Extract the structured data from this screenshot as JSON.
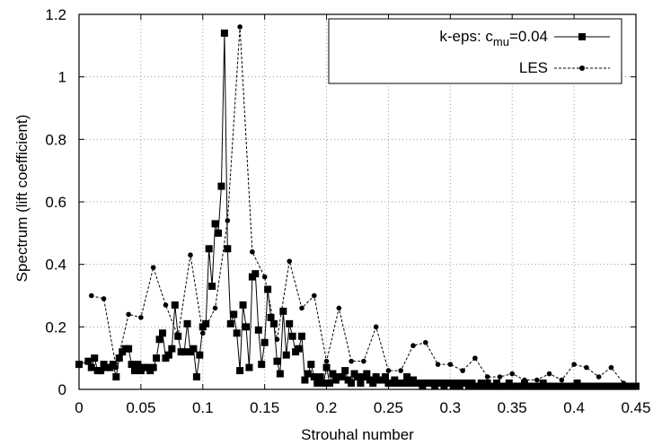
{
  "chart_data": {
    "type": "line",
    "xlabel": "Strouhal number",
    "ylabel": "Spectrum (lift coefficient)",
    "xlim": [
      0,
      0.45
    ],
    "ylim": [
      0,
      1.2
    ],
    "grid": true,
    "legend_position": "top-right",
    "x_ticks": [
      "0",
      "0.05",
      "0.1",
      "0.15",
      "0.2",
      "0.25",
      "0.3",
      "0.35",
      "0.4",
      "0.45"
    ],
    "y_ticks": [
      "0",
      "0.2",
      "0.4",
      "0.6",
      "0.8",
      "1",
      "1.2"
    ],
    "series": [
      {
        "name": "k-eps: c_mu=0.04",
        "legend_label_main": "k-eps: c",
        "legend_label_sub": "mu",
        "legend_label_tail": "=0.04",
        "color": "#000000",
        "marker": "square",
        "line_style": "solid",
        "x": [
          0.0,
          0.0075,
          0.01,
          0.0125,
          0.015,
          0.0175,
          0.02,
          0.0225,
          0.025,
          0.0275,
          0.03,
          0.0325,
          0.035,
          0.0375,
          0.04,
          0.0425,
          0.045,
          0.0475,
          0.05,
          0.0525,
          0.055,
          0.0575,
          0.06,
          0.0625,
          0.065,
          0.0675,
          0.07,
          0.0725,
          0.075,
          0.0775,
          0.08,
          0.0825,
          0.085,
          0.0875,
          0.09,
          0.0925,
          0.095,
          0.0975,
          0.1,
          0.1025,
          0.105,
          0.1075,
          0.11,
          0.1125,
          0.115,
          0.1175,
          0.12,
          0.1225,
          0.125,
          0.1275,
          0.13,
          0.1325,
          0.135,
          0.1375,
          0.14,
          0.1425,
          0.145,
          0.1475,
          0.15,
          0.1525,
          0.155,
          0.1575,
          0.16,
          0.1625,
          0.165,
          0.1675,
          0.17,
          0.1725,
          0.175,
          0.1775,
          0.18,
          0.1825,
          0.185,
          0.1875,
          0.19,
          0.1925,
          0.195,
          0.1975,
          0.2,
          0.2025,
          0.205,
          0.2075,
          0.21,
          0.2125,
          0.215,
          0.2175,
          0.22,
          0.2225,
          0.225,
          0.2275,
          0.23,
          0.2325,
          0.235,
          0.2375,
          0.24,
          0.2425,
          0.245,
          0.2475,
          0.25,
          0.2525,
          0.255,
          0.2575,
          0.26,
          0.2625,
          0.265,
          0.2675,
          0.27,
          0.2725,
          0.275,
          0.2775,
          0.28,
          0.2825,
          0.285,
          0.2875,
          0.29,
          0.2925,
          0.295,
          0.2975,
          0.3,
          0.3025,
          0.305,
          0.3075,
          0.31,
          0.3125,
          0.315,
          0.3175,
          0.32,
          0.3225,
          0.325,
          0.3275,
          0.33,
          0.3325,
          0.335,
          0.3375,
          0.34,
          0.3425,
          0.345,
          0.3475,
          0.35,
          0.3525,
          0.355,
          0.3575,
          0.36,
          0.3625,
          0.365,
          0.3675,
          0.37,
          0.3725,
          0.375,
          0.3775,
          0.38,
          0.3825,
          0.385,
          0.3875,
          0.39,
          0.3925,
          0.395,
          0.3975,
          0.4,
          0.4025,
          0.405,
          0.4075,
          0.41,
          0.4125,
          0.415,
          0.4175,
          0.42,
          0.4225,
          0.425,
          0.4275,
          0.43,
          0.4325,
          0.435,
          0.4375,
          0.44,
          0.4425,
          0.445,
          0.4475,
          0.45
        ],
        "y": [
          0.08,
          0.09,
          0.07,
          0.1,
          0.06,
          0.06,
          0.08,
          0.07,
          0.07,
          0.08,
          0.04,
          0.1,
          0.12,
          0.13,
          0.13,
          0.08,
          0.06,
          0.08,
          0.06,
          0.07,
          0.07,
          0.06,
          0.07,
          0.1,
          0.16,
          0.18,
          0.1,
          0.11,
          0.13,
          0.27,
          0.17,
          0.12,
          0.12,
          0.21,
          0.12,
          0.13,
          0.04,
          0.11,
          0.2,
          0.21,
          0.45,
          0.33,
          0.53,
          0.5,
          0.65,
          1.14,
          0.45,
          0.21,
          0.24,
          0.18,
          0.06,
          0.27,
          0.2,
          0.07,
          0.36,
          0.37,
          0.19,
          0.08,
          0.15,
          0.32,
          0.23,
          0.21,
          0.09,
          0.05,
          0.25,
          0.11,
          0.21,
          0.17,
          0.12,
          0.13,
          0.17,
          0.03,
          0.05,
          0.08,
          0.04,
          0.02,
          0.04,
          0.02,
          0.07,
          0.02,
          0.05,
          0.03,
          0.04,
          0.04,
          0.06,
          0.03,
          0.02,
          0.05,
          0.04,
          0.02,
          0.04,
          0.05,
          0.03,
          0.02,
          0.04,
          0.03,
          0.03,
          0.04,
          0.02,
          0.02,
          0.03,
          0.02,
          0.02,
          0.02,
          0.04,
          0.02,
          0.03,
          0.02,
          0.02,
          0.01,
          0.02,
          0.02,
          0.02,
          0.01,
          0.02,
          0.02,
          0.01,
          0.02,
          0.02,
          0.01,
          0.02,
          0.01,
          0.02,
          0.02,
          0.01,
          0.02,
          0.01,
          0.01,
          0.02,
          0.01,
          0.02,
          0.01,
          0.01,
          0.02,
          0.01,
          0.01,
          0.01,
          0.02,
          0.01,
          0.01,
          0.01,
          0.01,
          0.02,
          0.01,
          0.01,
          0.01,
          0.01,
          0.01,
          0.02,
          0.01,
          0.01,
          0.01,
          0.01,
          0.01,
          0.01,
          0.01,
          0.01,
          0.01,
          0.01,
          0.02,
          0.01,
          0.01,
          0.01,
          0.01,
          0.01,
          0.01,
          0.01,
          0.01,
          0.01,
          0.01,
          0.01,
          0.01,
          0.01,
          0.01,
          0.01,
          0.01,
          0.01,
          0.01,
          0.01
        ]
      },
      {
        "name": "LES",
        "color": "#000000",
        "marker": "circle",
        "line_style": "dashed",
        "x": [
          0.01,
          0.02,
          0.03,
          0.04,
          0.05,
          0.06,
          0.07,
          0.08,
          0.09,
          0.1,
          0.11,
          0.12,
          0.13,
          0.14,
          0.15,
          0.16,
          0.17,
          0.18,
          0.19,
          0.2,
          0.21,
          0.22,
          0.23,
          0.24,
          0.25,
          0.26,
          0.27,
          0.28,
          0.29,
          0.3,
          0.31,
          0.32,
          0.33,
          0.34,
          0.35,
          0.36,
          0.37,
          0.38,
          0.39,
          0.4,
          0.41,
          0.42,
          0.43,
          0.44,
          0.45
        ],
        "y": [
          0.3,
          0.29,
          0.07,
          0.24,
          0.23,
          0.39,
          0.27,
          0.17,
          0.43,
          0.18,
          0.26,
          0.54,
          1.16,
          0.44,
          0.36,
          0.16,
          0.41,
          0.26,
          0.3,
          0.09,
          0.26,
          0.09,
          0.09,
          0.2,
          0.06,
          0.06,
          0.14,
          0.15,
          0.08,
          0.08,
          0.06,
          0.1,
          0.04,
          0.04,
          0.05,
          0.03,
          0.03,
          0.05,
          0.03,
          0.08,
          0.07,
          0.04,
          0.07,
          0.02,
          0.01
        ]
      }
    ]
  }
}
